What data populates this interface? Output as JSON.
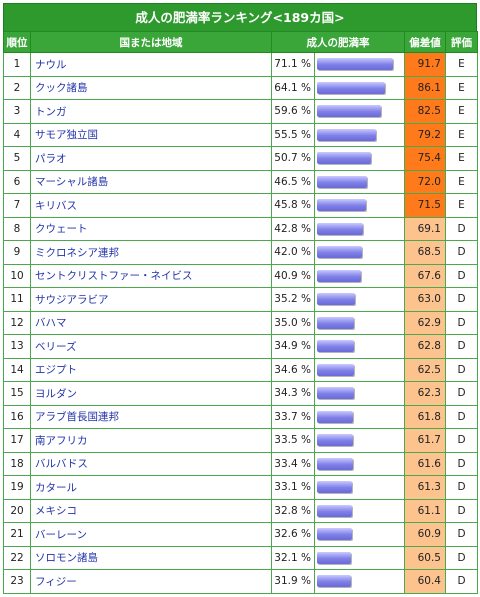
{
  "title": "成人の肥満率ランキング<189カ国>",
  "headers": {
    "rank": "順位",
    "country": "国または地域",
    "rate": "成人の肥満率",
    "deviation": "偏差値",
    "evaluation": "評価"
  },
  "colors": {
    "header_green": "#2e9a2e",
    "bar_blue": "#7f7fe8",
    "dev_E": "#ff7a1a",
    "dev_D": "#fcc38f"
  },
  "rows": [
    {
      "rank": "1",
      "country": "ナウル",
      "rate": "71.1 %",
      "rate_value": 71.1,
      "deviation": "91.7",
      "evaluation": "E"
    },
    {
      "rank": "2",
      "country": "クック諸島",
      "rate": "64.1 %",
      "rate_value": 64.1,
      "deviation": "86.1",
      "evaluation": "E"
    },
    {
      "rank": "3",
      "country": "トンガ",
      "rate": "59.6 %",
      "rate_value": 59.6,
      "deviation": "82.5",
      "evaluation": "E"
    },
    {
      "rank": "4",
      "country": "サモア独立国",
      "rate": "55.5 %",
      "rate_value": 55.5,
      "deviation": "79.2",
      "evaluation": "E"
    },
    {
      "rank": "5",
      "country": "パラオ",
      "rate": "50.7 %",
      "rate_value": 50.7,
      "deviation": "75.4",
      "evaluation": "E"
    },
    {
      "rank": "6",
      "country": "マーシャル諸島",
      "rate": "46.5 %",
      "rate_value": 46.5,
      "deviation": "72.0",
      "evaluation": "E"
    },
    {
      "rank": "7",
      "country": "キリバス",
      "rate": "45.8 %",
      "rate_value": 45.8,
      "deviation": "71.5",
      "evaluation": "E"
    },
    {
      "rank": "8",
      "country": "クウェート",
      "rate": "42.8 %",
      "rate_value": 42.8,
      "deviation": "69.1",
      "evaluation": "D"
    },
    {
      "rank": "9",
      "country": "ミクロネシア連邦",
      "rate": "42.0 %",
      "rate_value": 42.0,
      "deviation": "68.5",
      "evaluation": "D"
    },
    {
      "rank": "10",
      "country": "セントクリストファー・ネイビス",
      "rate": "40.9 %",
      "rate_value": 40.9,
      "deviation": "67.6",
      "evaluation": "D"
    },
    {
      "rank": "11",
      "country": "サウジアラビア",
      "rate": "35.2 %",
      "rate_value": 35.2,
      "deviation": "63.0",
      "evaluation": "D"
    },
    {
      "rank": "12",
      "country": "バハマ",
      "rate": "35.0 %",
      "rate_value": 35.0,
      "deviation": "62.9",
      "evaluation": "D"
    },
    {
      "rank": "13",
      "country": "ベリーズ",
      "rate": "34.9 %",
      "rate_value": 34.9,
      "deviation": "62.8",
      "evaluation": "D"
    },
    {
      "rank": "14",
      "country": "エジプト",
      "rate": "34.6 %",
      "rate_value": 34.6,
      "deviation": "62.5",
      "evaluation": "D"
    },
    {
      "rank": "15",
      "country": "ヨルダン",
      "rate": "34.3 %",
      "rate_value": 34.3,
      "deviation": "62.3",
      "evaluation": "D"
    },
    {
      "rank": "16",
      "country": "アラブ首長国連邦",
      "rate": "33.7 %",
      "rate_value": 33.7,
      "deviation": "61.8",
      "evaluation": "D"
    },
    {
      "rank": "17",
      "country": "南アフリカ",
      "rate": "33.5 %",
      "rate_value": 33.5,
      "deviation": "61.7",
      "evaluation": "D"
    },
    {
      "rank": "18",
      "country": "バルバドス",
      "rate": "33.4 %",
      "rate_value": 33.4,
      "deviation": "61.6",
      "evaluation": "D"
    },
    {
      "rank": "19",
      "country": "カタール",
      "rate": "33.1 %",
      "rate_value": 33.1,
      "deviation": "61.3",
      "evaluation": "D"
    },
    {
      "rank": "20",
      "country": "メキシコ",
      "rate": "32.8 %",
      "rate_value": 32.8,
      "deviation": "61.1",
      "evaluation": "D"
    },
    {
      "rank": "21",
      "country": "バーレーン",
      "rate": "32.6 %",
      "rate_value": 32.6,
      "deviation": "60.9",
      "evaluation": "D"
    },
    {
      "rank": "22",
      "country": "ソロモン諸島",
      "rate": "32.1 %",
      "rate_value": 32.1,
      "deviation": "60.5",
      "evaluation": "D"
    },
    {
      "rank": "23",
      "country": "フィジー",
      "rate": "31.9 %",
      "rate_value": 31.9,
      "deviation": "60.4",
      "evaluation": "D"
    }
  ]
}
